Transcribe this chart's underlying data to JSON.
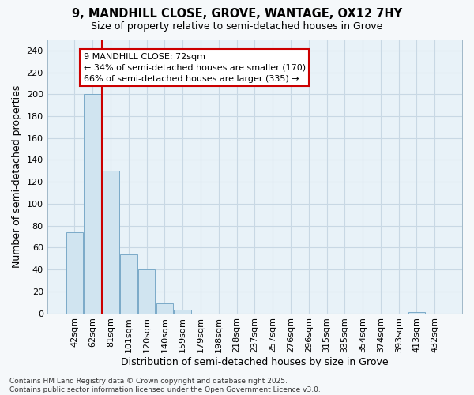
{
  "title": "9, MANDHILL CLOSE, GROVE, WANTAGE, OX12 7HY",
  "subtitle": "Size of property relative to semi-detached houses in Grove",
  "xlabel": "Distribution of semi-detached houses by size in Grove",
  "ylabel": "Number of semi-detached properties",
  "bar_color": "#d0e4f0",
  "bar_edgecolor": "#7aaac8",
  "grid_color": "#c8d8e4",
  "background_color": "#e8f2f8",
  "fig_background": "#f5f8fa",
  "categories": [
    "42sqm",
    "62sqm",
    "81sqm",
    "101sqm",
    "120sqm",
    "140sqm",
    "159sqm",
    "179sqm",
    "198sqm",
    "218sqm",
    "237sqm",
    "257sqm",
    "276sqm",
    "296sqm",
    "315sqm",
    "335sqm",
    "354sqm",
    "374sqm",
    "393sqm",
    "413sqm",
    "432sqm"
  ],
  "values": [
    74,
    200,
    130,
    54,
    40,
    9,
    3,
    0,
    0,
    0,
    0,
    0,
    0,
    0,
    0,
    0,
    0,
    0,
    0,
    1,
    0
  ],
  "ylim": [
    0,
    250
  ],
  "yticks": [
    0,
    20,
    40,
    60,
    80,
    100,
    120,
    140,
    160,
    180,
    200,
    220,
    240
  ],
  "marker_line_color": "#cc0000",
  "annotation_box_edgecolor": "#cc0000",
  "annotation_box_facecolor": "#ffffff",
  "marker_label": "9 MANDHILL CLOSE: 72sqm",
  "annotation_line1": "← 34% of semi-detached houses are smaller (170)",
  "annotation_line2": "66% of semi-detached houses are larger (335) →",
  "footer_line1": "Contains HM Land Registry data © Crown copyright and database right 2025.",
  "footer_line2": "Contains public sector information licensed under the Open Government Licence v3.0.",
  "title_fontsize": 10.5,
  "subtitle_fontsize": 9,
  "axis_label_fontsize": 9,
  "tick_fontsize": 8,
  "annotation_fontsize": 8,
  "footer_fontsize": 6.5
}
